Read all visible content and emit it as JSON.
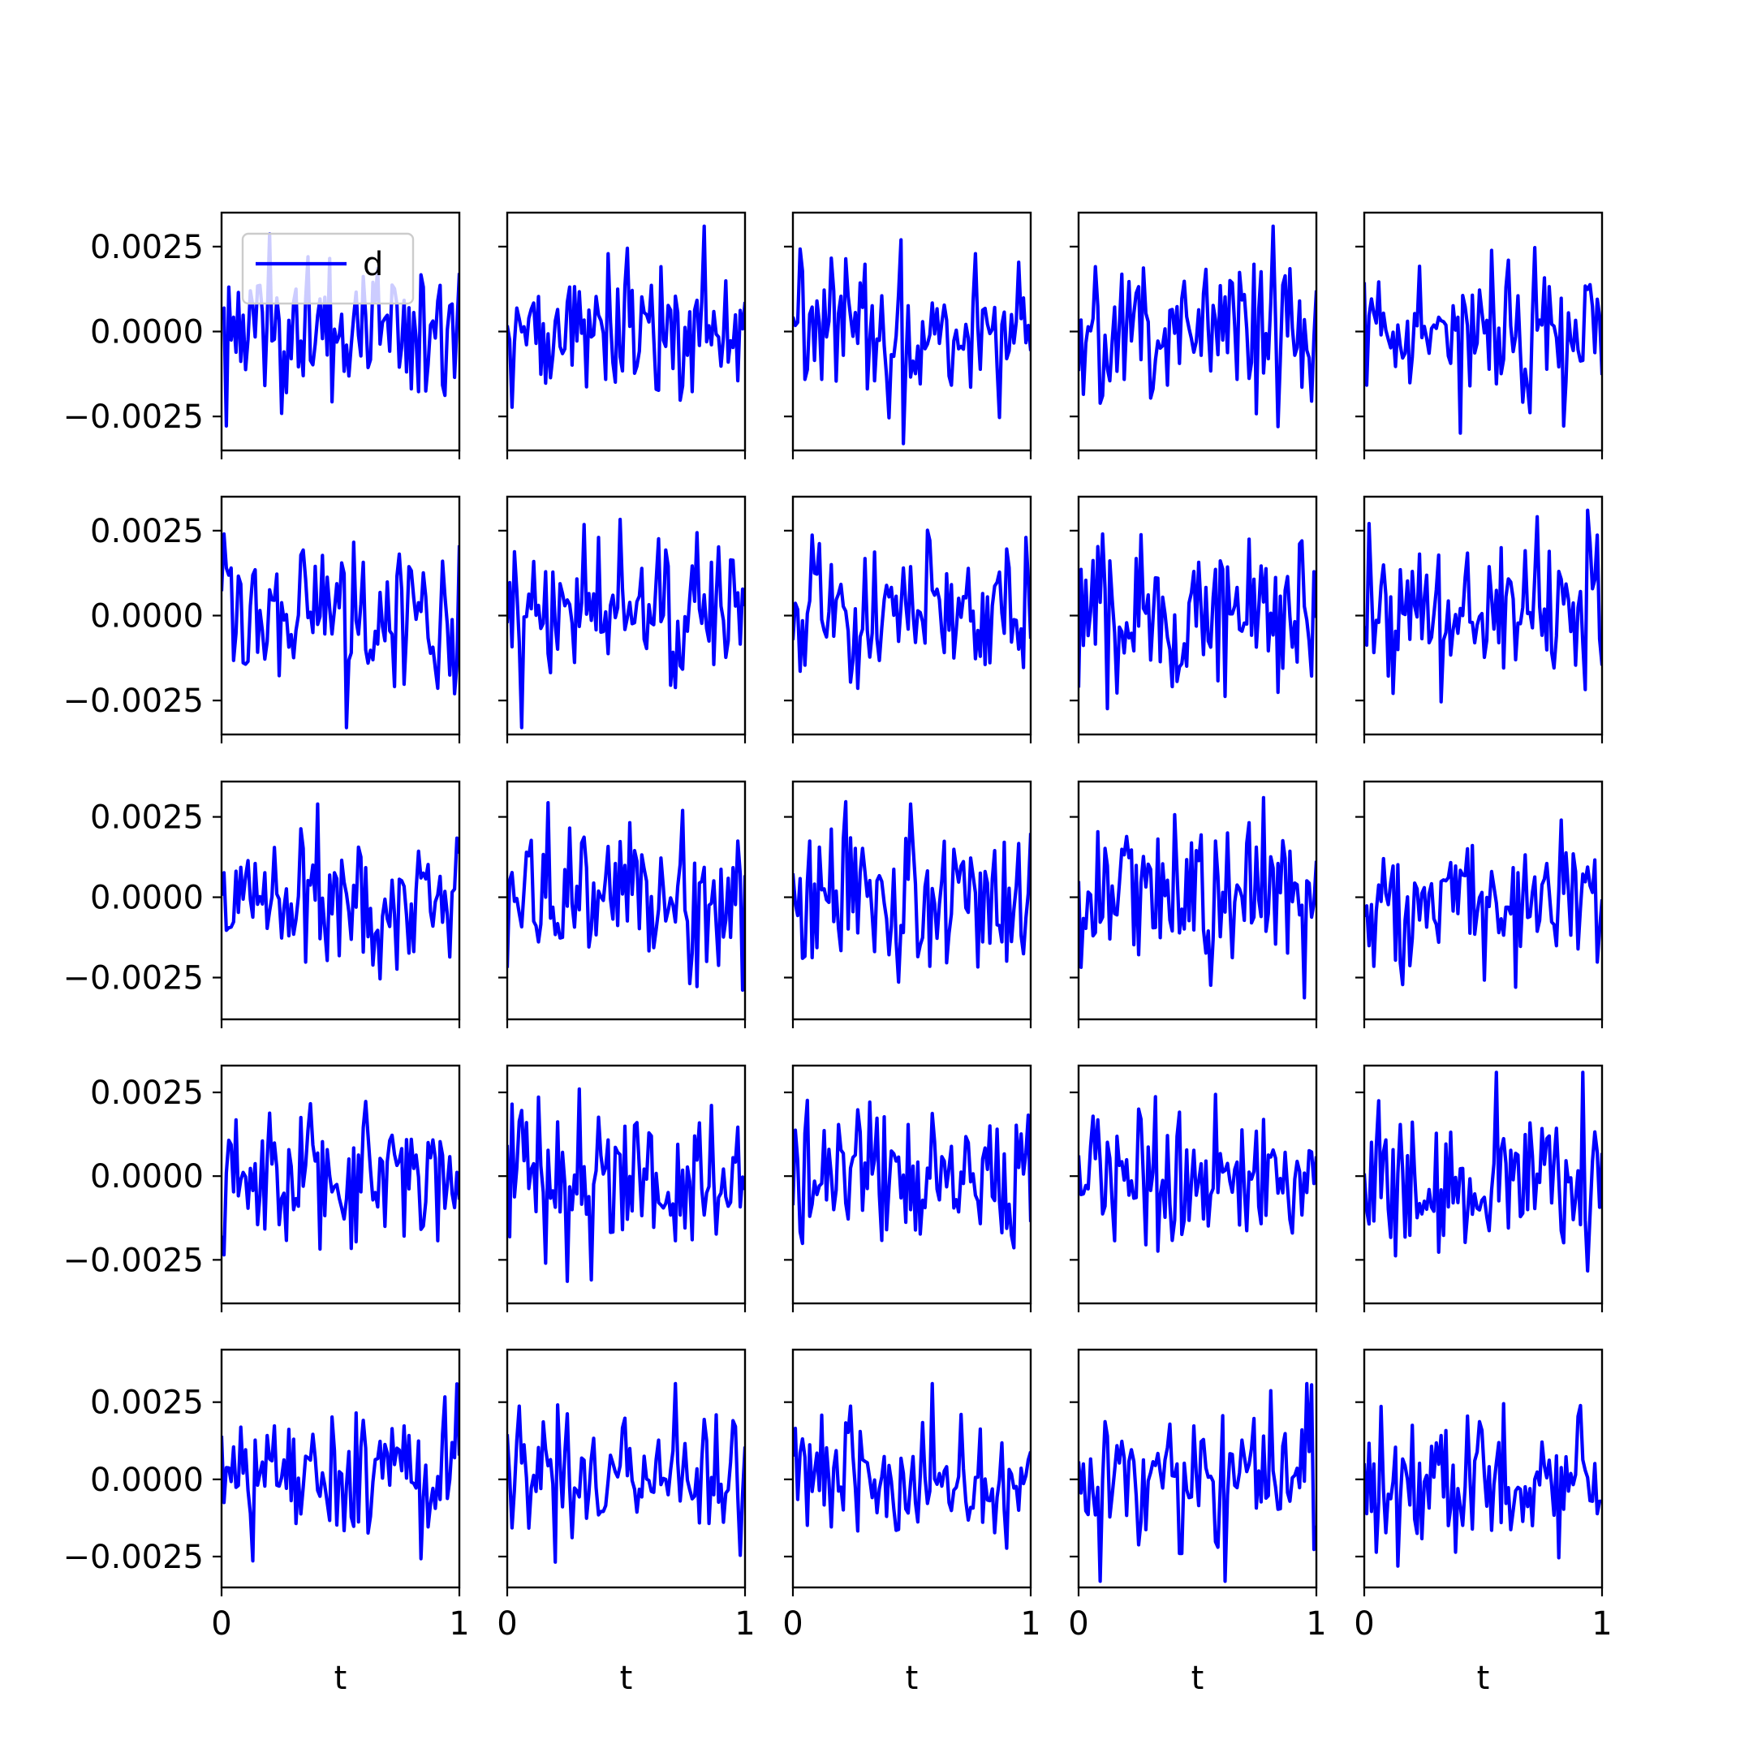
{
  "figure": {
    "line_color": "#0000ff",
    "background": "#ffffff"
  },
  "legend": {
    "label": "d",
    "color": "#0000ff",
    "placement": "upper-left of first panel"
  },
  "chart_data": {
    "type": "line",
    "layout": "5 x 5 grid of subplots, shared y within each row, shared x within each column",
    "series_name": "d",
    "x_label": "t",
    "xlim": [
      0,
      1
    ],
    "x_ticks": [
      0,
      1
    ],
    "x_tick_labels": [
      "0",
      "1"
    ],
    "y_tick_labels": [
      "0.0025",
      "0.0000",
      "−0.0025"
    ],
    "y_ticks": [
      0.0025,
      0.0,
      -0.0025
    ],
    "row_ylims": [
      [
        -0.0035,
        0.0035
      ],
      [
        -0.0035,
        0.0035
      ],
      [
        -0.0038,
        0.0036
      ],
      [
        -0.0038,
        0.0033
      ],
      [
        -0.0035,
        0.0042
      ]
    ],
    "grid": false,
    "points_per_series": 100,
    "note_values": "noise-like signals, values read approximately from the figure",
    "panels": []
  }
}
